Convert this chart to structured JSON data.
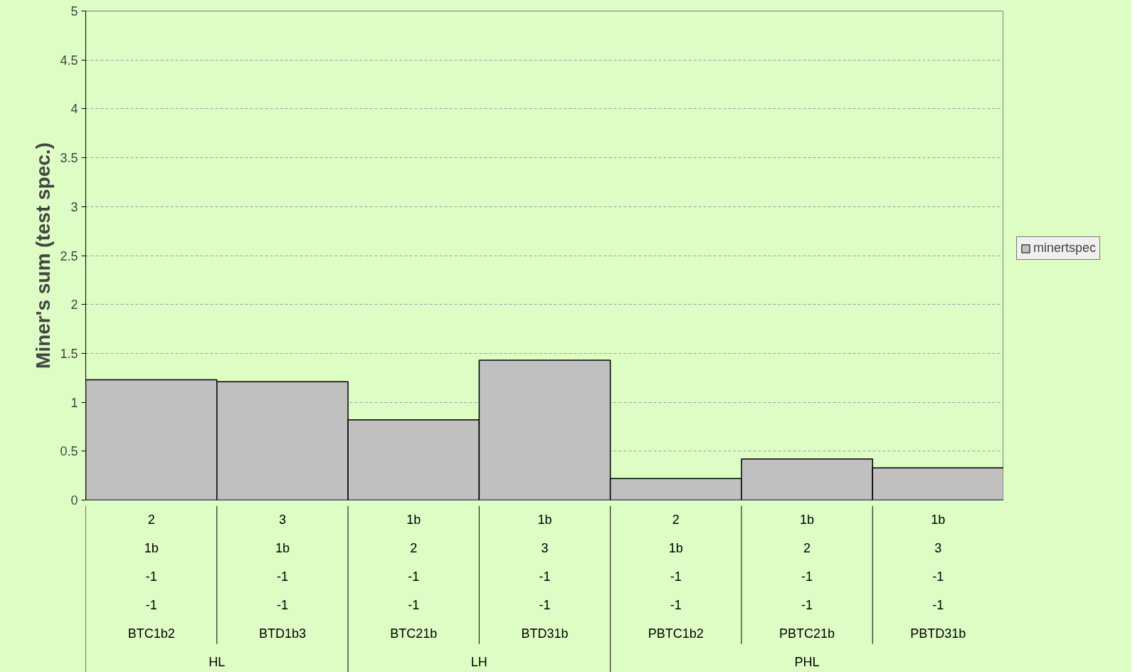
{
  "chart_data": {
    "type": "bar",
    "ylabel": "Miner's sum (test spec.)",
    "categories": [
      "2\n1b\n-1\n-1\nBTC1b2\nHL",
      "3\n1b\n-1\n-1\nBTD1b3",
      "1b\n2\n-1\n-1\nBTC21b\nLH",
      "1b\n3\n-1\n-1\nBTD31b",
      "2\n1b\n-1\n-1\nPBTC1b2\nPHL",
      "1b\n2\n-1\n-1\nPBTC21b",
      "1b\n3\n-1\n-1\nPBTD31b"
    ],
    "series": [
      {
        "name": "minertspec",
        "color": "#c0c0c0",
        "values": [
          1.23,
          1.21,
          0.82,
          1.43,
          0.22,
          0.42,
          0.33
        ]
      }
    ],
    "ylim": [
      0,
      5
    ],
    "yticks": [
      0,
      0.5,
      1,
      1.5,
      2,
      2.5,
      3,
      3.5,
      4,
      4.5,
      5
    ],
    "grid": "y",
    "legend": "right"
  }
}
